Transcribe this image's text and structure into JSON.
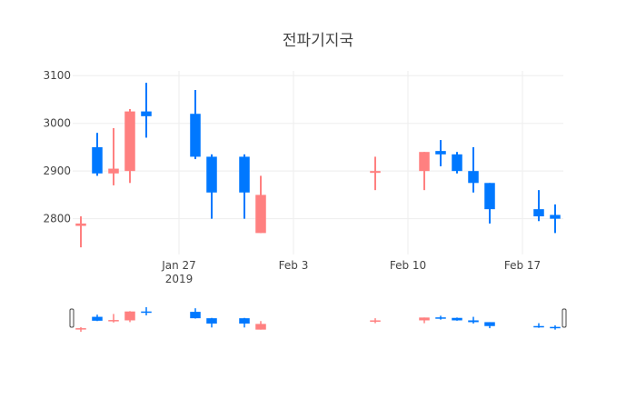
{
  "chart_data": {
    "type": "candlestick",
    "title": "전파기지국",
    "x_axis": {
      "ticks": [
        {
          "date": "2019-01-27",
          "label": "Jan 27",
          "sublabel": "2019"
        },
        {
          "date": "2019-02-03",
          "label": "Feb 3",
          "sublabel": ""
        },
        {
          "date": "2019-02-10",
          "label": "Feb 10",
          "sublabel": ""
        },
        {
          "date": "2019-02-17",
          "label": "Feb 17",
          "sublabel": ""
        }
      ],
      "range": [
        "2019-01-21",
        "2019-02-19"
      ]
    },
    "y_axis": {
      "ticks": [
        2800,
        2900,
        3000,
        3100
      ],
      "range": [
        2725,
        3110
      ]
    },
    "grid": true,
    "rangeslider": true,
    "increasing_color": "#0078ff",
    "decreasing_color": "#ff8080",
    "candles": [
      {
        "date": "2019-01-21",
        "open": 2790,
        "high": 2805,
        "low": 2740,
        "close": 2785
      },
      {
        "date": "2019-01-22",
        "open": 2895,
        "high": 2980,
        "low": 2890,
        "close": 2950
      },
      {
        "date": "2019-01-23",
        "open": 2905,
        "high": 2990,
        "low": 2870,
        "close": 2895
      },
      {
        "date": "2019-01-24",
        "open": 3025,
        "high": 3030,
        "low": 2875,
        "close": 2900
      },
      {
        "date": "2019-01-25",
        "open": 3015,
        "high": 3085,
        "low": 2970,
        "close": 3025
      },
      {
        "date": "2019-01-28",
        "open": 2930,
        "high": 3070,
        "low": 2925,
        "close": 3020
      },
      {
        "date": "2019-01-29",
        "open": 2855,
        "high": 2935,
        "low": 2800,
        "close": 2930
      },
      {
        "date": "2019-01-31",
        "open": 2855,
        "high": 2935,
        "low": 2800,
        "close": 2930
      },
      {
        "date": "2019-02-01",
        "open": 2850,
        "high": 2890,
        "low": 2770,
        "close": 2770
      },
      {
        "date": "2019-02-08",
        "open": 2900,
        "high": 2930,
        "low": 2860,
        "close": 2898
      },
      {
        "date": "2019-02-11",
        "open": 2940,
        "high": 2940,
        "low": 2860,
        "close": 2900
      },
      {
        "date": "2019-02-12",
        "open": 2935,
        "high": 2965,
        "low": 2910,
        "close": 2942
      },
      {
        "date": "2019-02-13",
        "open": 2900,
        "high": 2940,
        "low": 2895,
        "close": 2935
      },
      {
        "date": "2019-02-14",
        "open": 2875,
        "high": 2950,
        "low": 2855,
        "close": 2900
      },
      {
        "date": "2019-02-15",
        "open": 2820,
        "high": 2875,
        "low": 2790,
        "close": 2875
      },
      {
        "date": "2019-02-18",
        "open": 2805,
        "high": 2860,
        "low": 2795,
        "close": 2820
      },
      {
        "date": "2019-02-19",
        "open": 2800,
        "high": 2830,
        "low": 2770,
        "close": 2808
      }
    ]
  }
}
